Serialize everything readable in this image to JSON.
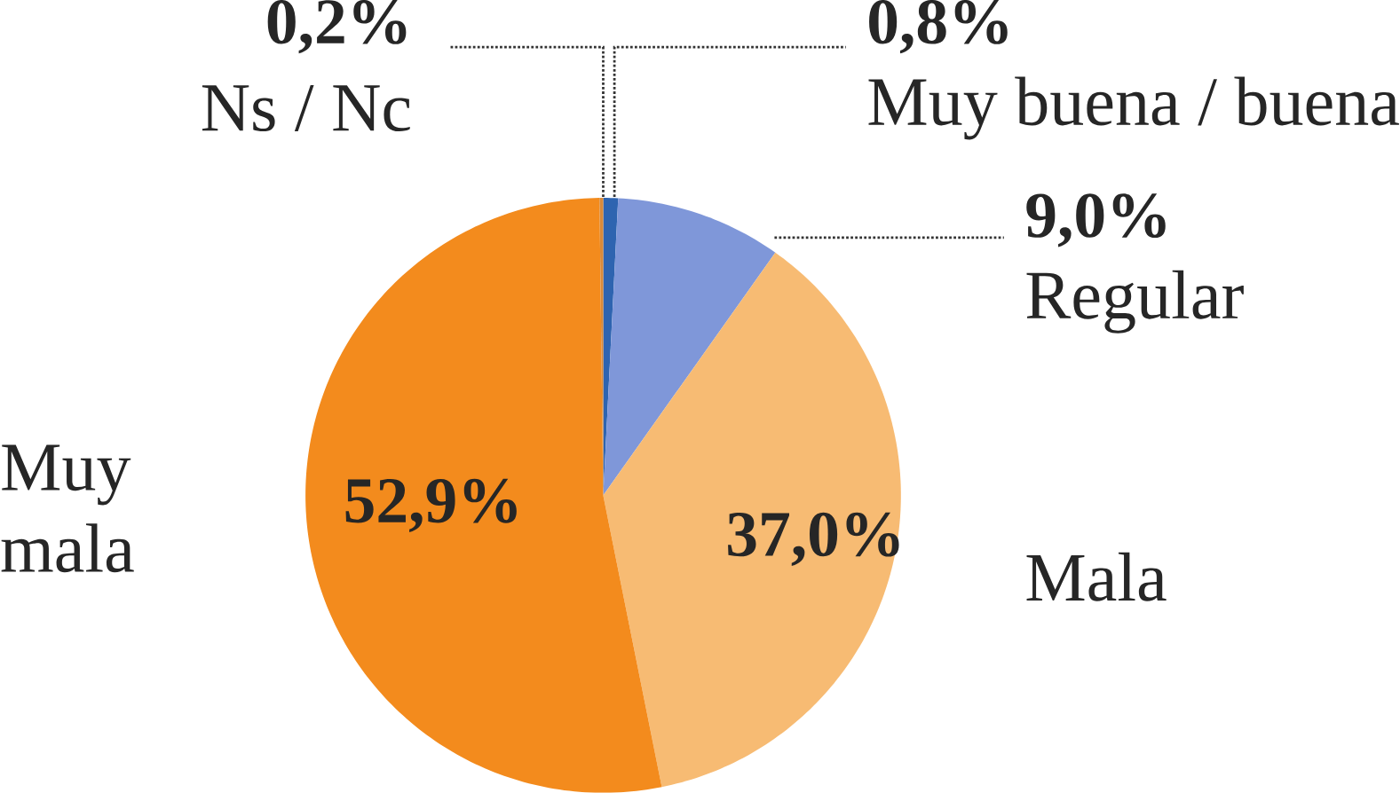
{
  "chart_data": {
    "type": "pie",
    "categories": [
      "Muy buena / buena",
      "Regular",
      "Mala",
      "Muy mala",
      "Ns / Nc"
    ],
    "values": [
      0.8,
      9.0,
      37.0,
      52.9,
      0.2
    ],
    "colors": [
      "#2e64b0",
      "#7f97d9",
      "#f7bb73",
      "#f38b1d",
      "#d98a3a"
    ],
    "value_labels": [
      "0,8%",
      "9,0%",
      "37,0%",
      "52,9%",
      "0,2%"
    ]
  }
}
